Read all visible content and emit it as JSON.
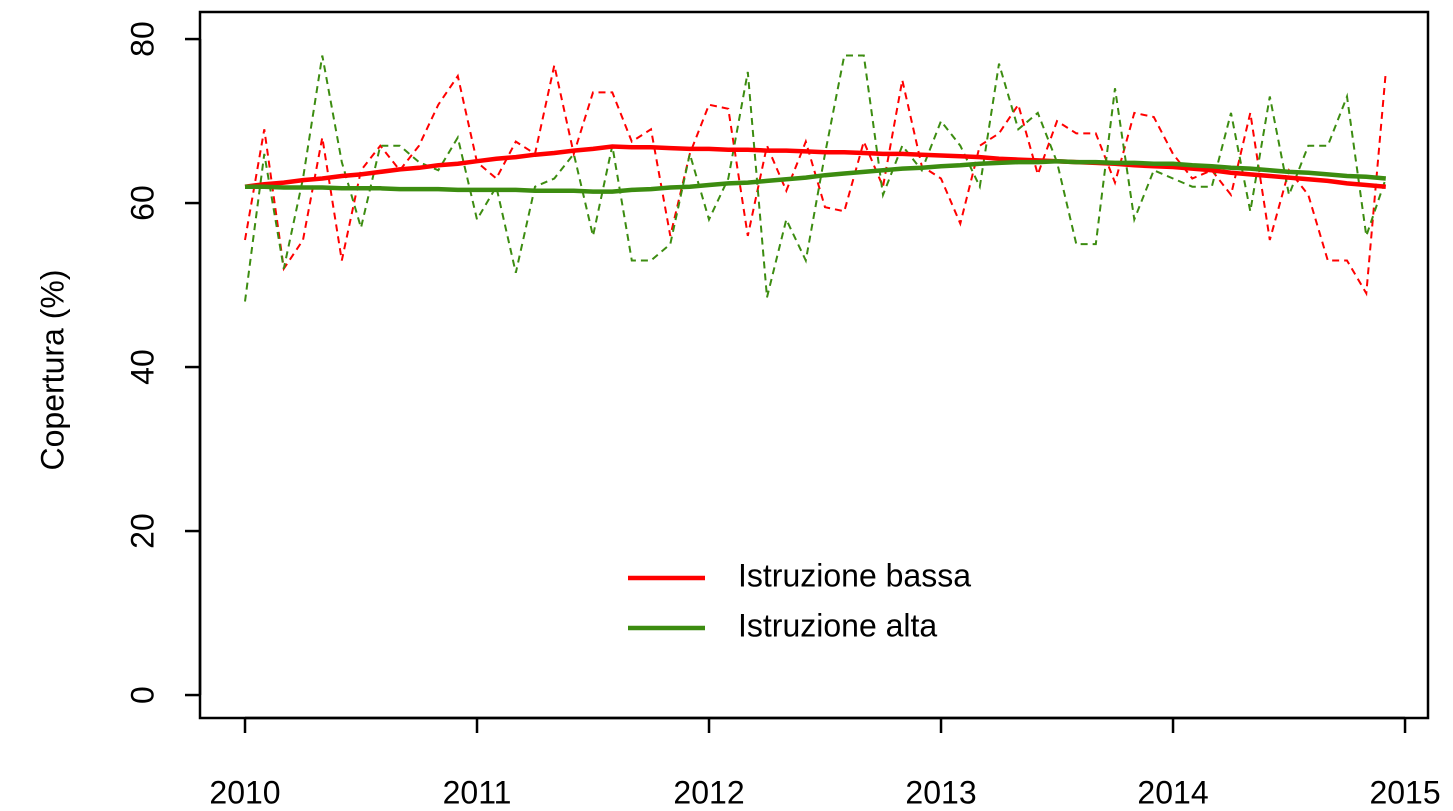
{
  "chart_data": {
    "type": "line",
    "ylabel": "Copertura (%)",
    "x": [
      2010,
      2010.083,
      2010.167,
      2010.25,
      2010.333,
      2010.417,
      2010.5,
      2010.583,
      2010.667,
      2010.75,
      2010.833,
      2010.917,
      2011,
      2011.083,
      2011.167,
      2011.25,
      2011.333,
      2011.417,
      2011.5,
      2011.583,
      2011.667,
      2011.75,
      2011.833,
      2011.917,
      2012,
      2012.083,
      2012.167,
      2012.25,
      2012.333,
      2012.417,
      2012.5,
      2012.583,
      2012.667,
      2012.75,
      2012.833,
      2012.917,
      2013,
      2013.083,
      2013.167,
      2013.25,
      2013.333,
      2013.417,
      2013.5,
      2013.583,
      2013.667,
      2013.75,
      2013.833,
      2013.917,
      2014,
      2014.083,
      2014.167,
      2014.25,
      2014.333,
      2014.417,
      2014.5,
      2014.583,
      2014.667,
      2014.75,
      2014.833,
      2014.917
    ],
    "series": [
      {
        "name": "Istruzione bassa",
        "color": "#ff0000",
        "values": [
          55.5,
          69,
          52,
          55.5,
          68,
          53,
          64,
          67,
          64,
          67,
          72,
          75.5,
          65,
          63,
          67.5,
          66,
          76.8,
          66,
          73.5,
          73.5,
          67.5,
          69,
          56,
          66,
          72,
          71.5,
          56,
          67,
          61.5,
          67.5,
          59.5,
          59,
          67.5,
          62,
          75,
          64.5,
          63,
          57.5,
          67,
          68.5,
          72,
          63.5,
          70,
          68.5,
          68.5,
          62.5,
          71,
          70.5,
          66,
          63,
          64,
          61,
          71,
          55.5,
          64,
          61,
          53,
          53,
          49,
          76
        ],
        "trend": [
          62,
          62.3,
          62.5,
          62.8,
          63.0,
          63.3,
          63.5,
          63.8,
          64.1,
          64.3,
          64.6,
          64.8,
          65.1,
          65.4,
          65.6,
          65.9,
          66.1,
          66.4,
          66.6,
          66.9,
          66.8,
          66.8,
          66.7,
          66.6,
          66.6,
          66.5,
          66.5,
          66.4,
          66.4,
          66.3,
          66.2,
          66.2,
          66.1,
          66.0,
          66.0,
          65.9,
          65.8,
          65.7,
          65.6,
          65.4,
          65.3,
          65.2,
          65.1,
          65.0,
          64.9,
          64.8,
          64.6,
          64.5,
          64.4,
          64.2,
          64.0,
          63.7,
          63.5,
          63.3,
          63.1,
          62.9,
          62.7,
          62.4,
          62.2,
          62.0
        ]
      },
      {
        "name": "Istruzione alta",
        "color": "#3c8c10",
        "values": [
          48,
          66,
          52,
          63,
          78,
          65,
          57,
          67,
          67,
          65,
          64,
          68,
          58,
          62,
          51.5,
          62,
          63,
          66,
          56,
          67,
          53,
          53,
          55,
          66,
          58,
          63,
          76,
          48.5,
          58,
          53,
          66,
          78,
          78,
          61,
          67,
          64,
          70,
          67,
          62,
          77,
          69,
          71,
          65,
          55,
          55,
          74,
          58,
          64,
          63,
          62,
          62,
          71,
          59,
          73,
          61,
          67,
          67,
          73,
          56,
          63
        ],
        "trend": [
          62.0,
          62.0,
          61.9,
          61.9,
          61.9,
          61.8,
          61.8,
          61.8,
          61.7,
          61.7,
          61.7,
          61.6,
          61.6,
          61.6,
          61.6,
          61.5,
          61.5,
          61.5,
          61.4,
          61.4,
          61.6,
          61.7,
          61.9,
          62.0,
          62.2,
          62.4,
          62.5,
          62.7,
          62.9,
          63.1,
          63.4,
          63.6,
          63.8,
          64.0,
          64.2,
          64.3,
          64.5,
          64.6,
          64.8,
          64.9,
          65.0,
          65.0,
          65.1,
          65.0,
          65.0,
          64.9,
          64.9,
          64.8,
          64.8,
          64.6,
          64.5,
          64.3,
          64.2,
          64.0,
          63.8,
          63.7,
          63.5,
          63.3,
          63.2,
          63.0
        ]
      }
    ],
    "xlim": [
      2009.806,
      2015.099
    ],
    "xticks": [
      2010,
      2011,
      2012,
      2013,
      2014,
      2015
    ],
    "ylim": [
      -2.8,
      83.3
    ],
    "yticks": [
      0,
      20,
      40,
      60,
      80
    ],
    "legend": "bottom"
  }
}
